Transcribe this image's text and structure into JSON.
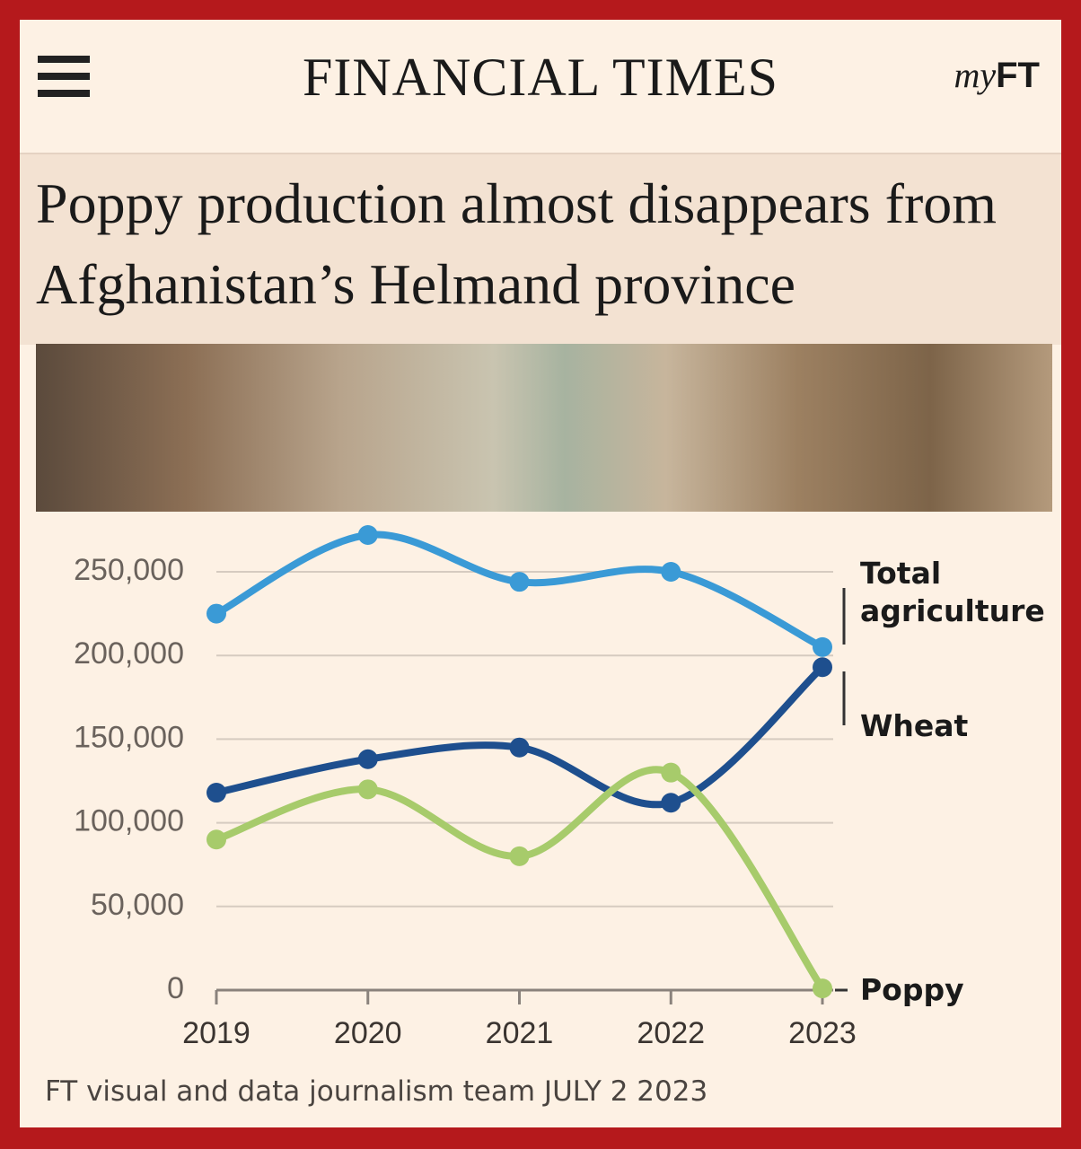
{
  "header": {
    "brand": "FINANCIAL TIMES",
    "my": "my",
    "ft": "FT"
  },
  "chart_data": {
    "type": "line",
    "title": "Poppy production almost disappears from Afghanistan’s Helmand province",
    "categories": [
      "2019",
      "2020",
      "2021",
      "2022",
      "2023"
    ],
    "series": [
      {
        "name": "Total agriculture",
        "color": "#3a9ad6",
        "values": [
          225000,
          272000,
          244000,
          250000,
          205000
        ]
      },
      {
        "name": "Wheat",
        "color": "#1e4f8e",
        "values": [
          118000,
          138000,
          145000,
          112000,
          193000
        ]
      },
      {
        "name": "Poppy",
        "color": "#a7cb6b",
        "values": [
          90000,
          120000,
          80000,
          130000,
          1000
        ]
      }
    ],
    "ylim": [
      0,
      250000
    ],
    "yticks": [
      {
        "value": 0,
        "label": "0"
      },
      {
        "value": 50000,
        "label": "50,000"
      },
      {
        "value": 100000,
        "label": "100,000"
      },
      {
        "value": 150000,
        "label": "150,000"
      },
      {
        "value": 200000,
        "label": "200,000"
      },
      {
        "value": 250000,
        "label": "250,000"
      }
    ],
    "grid": true,
    "source": "FT visual and data journalism team JULY 2 2023"
  }
}
